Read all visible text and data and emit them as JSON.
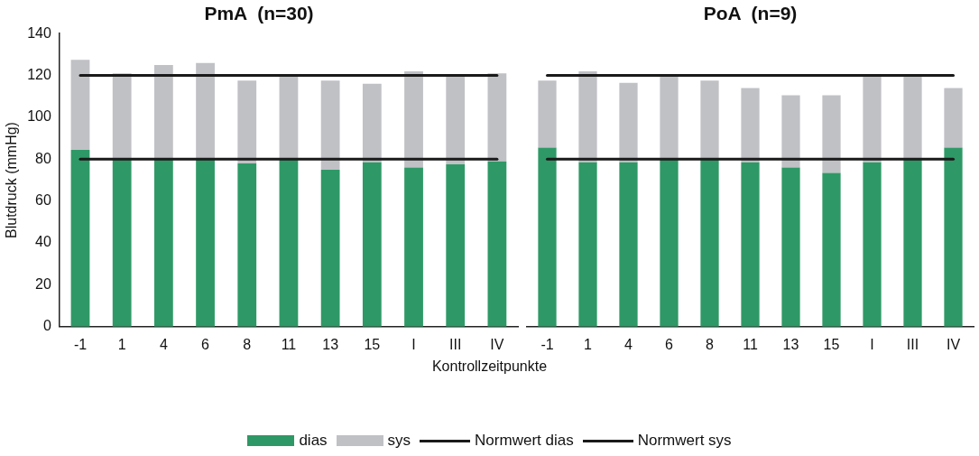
{
  "chart_data": [
    {
      "type": "bar",
      "title": "PmA  (n=30)",
      "ylabel": "Blutdruck (mmHg)",
      "xlabel": "Kontrollzeitpunkte",
      "stacked": true,
      "legend": "bottom",
      "categories": [
        "-1",
        "1",
        "4",
        "6",
        "8",
        "11",
        "13",
        "15",
        "I",
        "III",
        "IV"
      ],
      "ylim": [
        0,
        140
      ],
      "yticks": [
        0,
        20,
        40,
        60,
        80,
        100,
        120,
        140
      ],
      "series": [
        {
          "name": "dias",
          "color": "#2e9966",
          "values": [
            84.5,
            80,
            80,
            80.5,
            78,
            80,
            75,
            78.5,
            76,
            77.5,
            79
          ]
        },
        {
          "name": "sys",
          "color": "#c0c1c5",
          "values": [
            43,
            41,
            45,
            45.5,
            39.5,
            40,
            42.5,
            37.5,
            46,
            42,
            42
          ]
        },
        {
          "name": "Normwert dias",
          "type": "line",
          "color": "#1a1a1a",
          "values": [
            80,
            80,
            80,
            80,
            80,
            80,
            80,
            80,
            80,
            80,
            80
          ]
        },
        {
          "name": "Normwert sys",
          "type": "line",
          "color": "#1a1a1a",
          "values": [
            120,
            120,
            120,
            120,
            120,
            120,
            120,
            120,
            120,
            120,
            120
          ]
        }
      ]
    },
    {
      "type": "bar",
      "title": "PoA  (n=9)",
      "stacked": true,
      "tick_labels": "x",
      "categories": [
        "-1",
        "1",
        "4",
        "6",
        "8",
        "11",
        "13",
        "15",
        "I",
        "III",
        "IV"
      ],
      "ylim": [
        0,
        140
      ],
      "series": [
        {
          "color": "#2e9966",
          "values": [
            85.5,
            78.5,
            78.5,
            80,
            80,
            78.5,
            76,
            73.5,
            78.5,
            80,
            85.5
          ]
        },
        {
          "color": "#c0c1c5",
          "values": [
            32,
            43.5,
            38,
            40,
            37.5,
            35.5,
            34.5,
            37,
            41.5,
            40,
            28.5
          ]
        },
        {
          "type": "line",
          "color": "#1a1a1a",
          "values": [
            80,
            80,
            80,
            80,
            80,
            80,
            80,
            80,
            80,
            80,
            80
          ]
        },
        {
          "type": "line",
          "color": "#1a1a1a",
          "values": [
            120,
            120,
            120,
            120,
            120,
            120,
            120,
            120,
            120,
            120,
            120
          ]
        }
      ]
    }
  ]
}
